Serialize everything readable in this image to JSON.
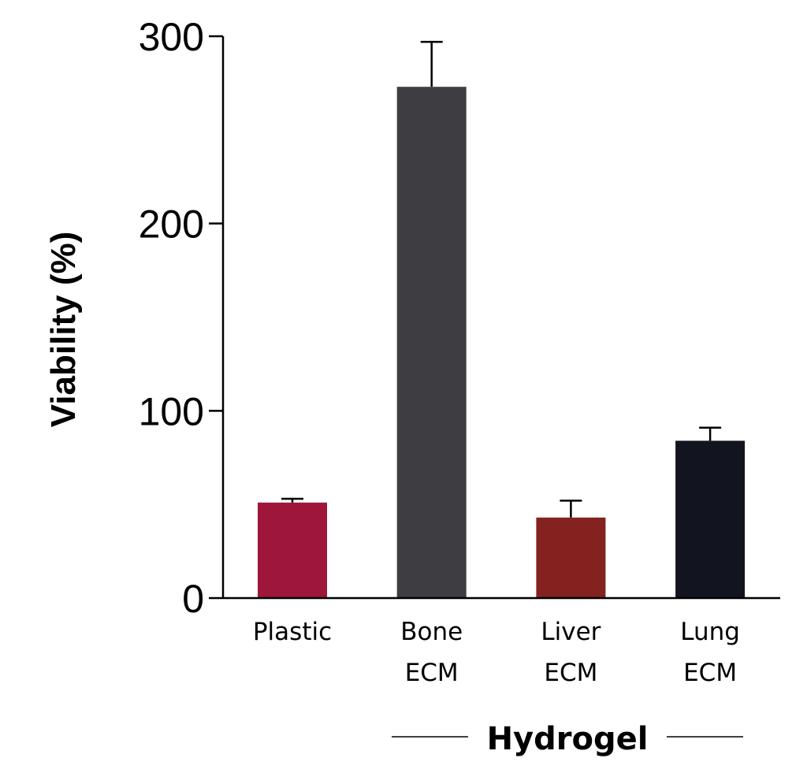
{
  "chart_data": {
    "type": "bar",
    "ylabel": "Viability (%)",
    "ylim": [
      0,
      300
    ],
    "yticks": [
      "0",
      "100",
      "200",
      "300"
    ],
    "categories": [
      {
        "lines": [
          "Plastic"
        ],
        "value": 51,
        "error": 2,
        "color": "#9e1639"
      },
      {
        "lines": [
          "Bone",
          "ECM"
        ],
        "value": 273,
        "error": 24,
        "color": "#3e3e42"
      },
      {
        "lines": [
          "Liver",
          "ECM"
        ],
        "value": 43,
        "error": 9,
        "color": "#842220"
      },
      {
        "lines": [
          "Lung",
          "ECM"
        ],
        "value": 84,
        "error": 7,
        "color": "#12141f"
      }
    ],
    "group_label": "Hydrogel",
    "grid": false,
    "legend": "none"
  }
}
